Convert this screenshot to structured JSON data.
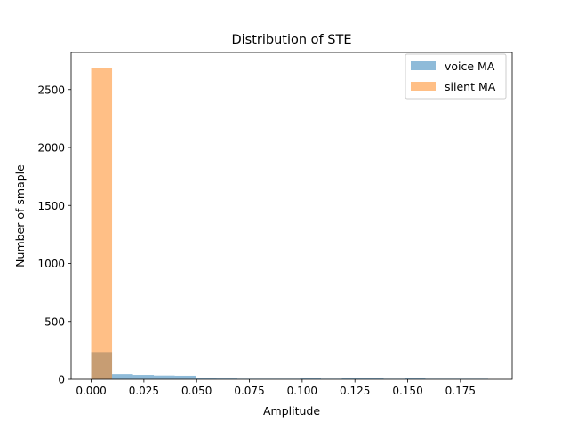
{
  "chart_data": {
    "type": "bar",
    "title": "Distribution of STE",
    "xlabel": "Amplitude",
    "ylabel": "Number of smaple",
    "xlim": [
      -0.0095,
      0.1995
    ],
    "ylim": [
      0,
      2820
    ],
    "xticks": [
      0.0,
      0.025,
      0.05,
      0.075,
      0.1,
      0.125,
      0.15,
      0.175
    ],
    "xtick_labels": [
      "0.000",
      "0.025",
      "0.050",
      "0.075",
      "0.100",
      "0.125",
      "0.150",
      "0.175"
    ],
    "yticks": [
      0,
      500,
      1000,
      1500,
      2000,
      2500
    ],
    "ytick_labels": [
      "0",
      "500",
      "1000",
      "1500",
      "2000",
      "2500"
    ],
    "grid": false,
    "legend_position": "upper right",
    "series": [
      {
        "name": "voice MA",
        "color": "#1f77b4",
        "alpha": 0.5,
        "bins": [
          {
            "x0": 0.0,
            "x1": 0.0099,
            "count": 235
          },
          {
            "x0": 0.0099,
            "x1": 0.0198,
            "count": 45
          },
          {
            "x0": 0.0198,
            "x1": 0.0297,
            "count": 38
          },
          {
            "x0": 0.0297,
            "x1": 0.0396,
            "count": 33
          },
          {
            "x0": 0.0396,
            "x1": 0.0495,
            "count": 31
          },
          {
            "x0": 0.0495,
            "x1": 0.0594,
            "count": 14
          },
          {
            "x0": 0.0594,
            "x1": 0.0693,
            "count": 7
          },
          {
            "x0": 0.0693,
            "x1": 0.0792,
            "count": 5
          },
          {
            "x0": 0.0792,
            "x1": 0.0891,
            "count": 5
          },
          {
            "x0": 0.0891,
            "x1": 0.099,
            "count": 5
          },
          {
            "x0": 0.099,
            "x1": 0.1089,
            "count": 11
          },
          {
            "x0": 0.1089,
            "x1": 0.1188,
            "count": 5
          },
          {
            "x0": 0.1188,
            "x1": 0.1287,
            "count": 13
          },
          {
            "x0": 0.1287,
            "x1": 0.1386,
            "count": 13
          },
          {
            "x0": 0.1386,
            "x1": 0.1485,
            "count": 5
          },
          {
            "x0": 0.1485,
            "x1": 0.1584,
            "count": 12
          },
          {
            "x0": 0.1584,
            "x1": 0.1683,
            "count": 5
          },
          {
            "x0": 0.1683,
            "x1": 0.1782,
            "count": 5
          },
          {
            "x0": 0.1782,
            "x1": 0.1881,
            "count": 5
          }
        ]
      },
      {
        "name": "silent MA",
        "color": "#ff7f0e",
        "alpha": 0.5,
        "bins": [
          {
            "x0": 0.0,
            "x1": 0.0099,
            "count": 2685
          }
        ]
      }
    ]
  }
}
